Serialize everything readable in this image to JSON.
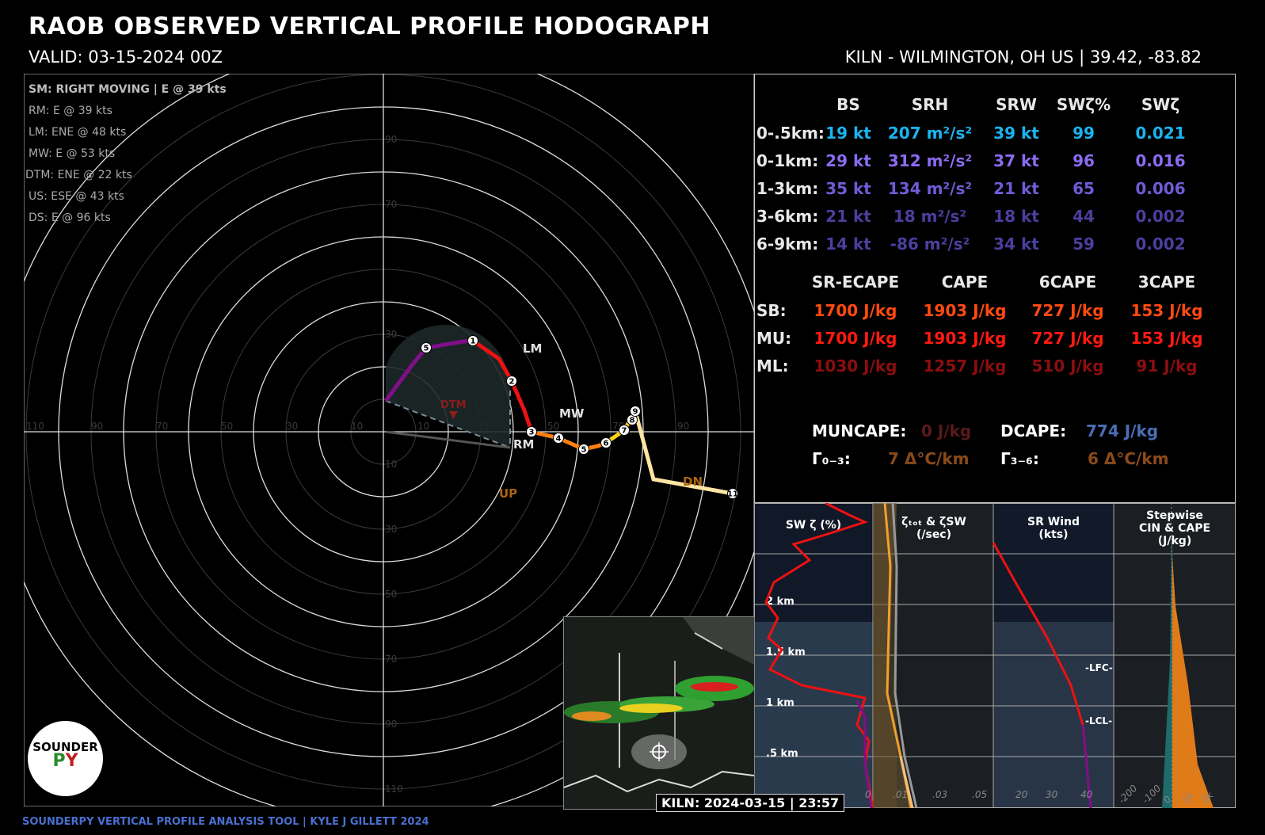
{
  "header": {
    "title": "RAOB OBSERVED VERTICAL PROFILE HODOGRAPH",
    "valid": "VALID: 03-15-2024 00Z",
    "station": "KILN - WILMINGTON, OH US | 39.42, -83.82"
  },
  "footer": "SOUNDERPY VERTICAL PROFILE ANALYSIS TOOL | KYLE J GILLETT 2024",
  "storm_motions": [
    "SM: RIGHT MOVING | E @ 39 kts",
    "RM: E @ 39 kts",
    "LM: ENE @ 48 kts",
    "MW: E @ 53 kts",
    "DTM: ENE @ 22 kts",
    "US: ESE @ 43 kts",
    "DS: E @ 96 kts"
  ],
  "kinematics": {
    "headers": [
      "BS",
      "SRH",
      "SRW",
      "SWζ%",
      "SWζ"
    ],
    "rows": [
      {
        "label": "0-.5km:",
        "color": "#1ab4f0",
        "values": [
          "19 kt",
          "207 m²/s²",
          "39 kt",
          "99",
          "0.021"
        ]
      },
      {
        "label": "0-1km:",
        "color": "#8a6cf0",
        "values": [
          "29 kt",
          "312 m²/s²",
          "37 kt",
          "96",
          "0.016"
        ]
      },
      {
        "label": "1-3km:",
        "color": "#6e5cd6",
        "values": [
          "35 kt",
          "134 m²/s²",
          "21 kt",
          "65",
          "0.006"
        ]
      },
      {
        "label": "3-6km:",
        "color": "#4b3f9e",
        "values": [
          "21 kt",
          "18 m²/s²",
          "18 kt",
          "44",
          "0.002"
        ]
      },
      {
        "label": "6-9km:",
        "color": "#4b3f9e",
        "values": [
          "14 kt",
          "-86 m²/s²",
          "34 kt",
          "59",
          "0.002"
        ]
      }
    ]
  },
  "thermo": {
    "headers": [
      "SR-ECAPE",
      "CAPE",
      "6CAPE",
      "3CAPE"
    ],
    "rows": [
      {
        "label": "SB:",
        "color": "#ff4a10",
        "values": [
          "1700 J/kg",
          "1903 J/kg",
          "727 J/kg",
          "153 J/kg"
        ]
      },
      {
        "label": "MU:",
        "color": "#ff1a10",
        "values": [
          "1700 J/kg",
          "1903 J/kg",
          "727 J/kg",
          "153 J/kg"
        ]
      },
      {
        "label": "ML:",
        "color": "#8b0e0e",
        "values": [
          "1030 J/kg",
          "1257 J/kg",
          "510 J/kg",
          "91 J/kg"
        ]
      }
    ],
    "muncape_label": "MUNCAPE:",
    "muncape": "0 J/kg",
    "dcape_label": "DCAPE:",
    "dcape": "774 J/kg",
    "lr03_label": "Γ₀₋₃:",
    "lr03": "7 Δ°C/km",
    "lr36_label": "Γ₃₋₆:",
    "lr36": "6 Δ°C/km"
  },
  "bottom_panels": {
    "titles": [
      "SW ζ (%)",
      "ζₜₒₜ & ζSW\n(/sec)",
      "SR Wind\n(kts)",
      "Stepwise\nCIN & CAPE\n(J/kg)"
    ],
    "height_labels": [
      "2 km",
      "1.5 km",
      "1 km",
      ".5 km"
    ],
    "panel2_ticks": [
      ".01",
      ".03",
      ".05"
    ],
    "panel3_ticks": [
      "20",
      "30",
      "40"
    ],
    "panel4_ticks": [
      "-200",
      "-100",
      "0",
      "1k",
      "2k"
    ],
    "panel1_tick": "0",
    "lfc": "-LFC-",
    "lcl": "-LCL-"
  },
  "hodograph": {
    "ring_labels": [
      "10",
      "30",
      "50",
      "70",
      "90",
      "110"
    ],
    "x_labels_left": [
      "110",
      "90",
      "70",
      "50",
      "30",
      "10"
    ],
    "x_labels_right": [
      "10",
      "30",
      "50",
      "70",
      "90"
    ],
    "y_labels_up": [
      "10",
      "30",
      "90",
      "70"
    ],
    "y_labels_down": [
      "10",
      "30",
      "50",
      "70",
      "90",
      "110"
    ],
    "markers": [
      "LM",
      "MW",
      "RM",
      "DTM",
      "UP",
      "DN"
    ],
    "height_points": [
      "1",
      "2",
      "3",
      "4",
      "5",
      "6",
      "7",
      "8",
      "9",
      "11",
      "5"
    ]
  },
  "map": {
    "stamp": "KILN: 2024-03-15 | 23:57"
  },
  "logo": {
    "text": "SOUNDER",
    "py": "PY"
  }
}
